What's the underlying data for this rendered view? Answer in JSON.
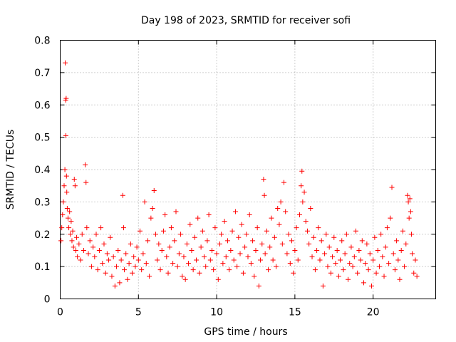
{
  "chart_data": {
    "type": "scatter",
    "title": "Day 198 of 2023, SRMTID for receiver sofi",
    "xlabel": "GPS time / hours",
    "ylabel": "SRMTID / TECUs",
    "xlim": [
      0,
      24
    ],
    "ylim": [
      0,
      0.8
    ],
    "xticks": [
      0,
      5,
      10,
      15,
      20
    ],
    "xtick_labels": [
      "0",
      "5",
      "10",
      "15",
      "20"
    ],
    "yticks": [
      0,
      0.1,
      0.2,
      0.3,
      0.4,
      0.5,
      0.6,
      0.7,
      0.8
    ],
    "ytick_labels": [
      "0",
      "0.1",
      "0.2",
      "0.3",
      "0.4",
      "0.5",
      "0.6",
      "0.7",
      "0.8"
    ],
    "grid": true,
    "marker": "+",
    "color": "#ff0000",
    "series": [
      {
        "name": "sofi",
        "points": [
          [
            0.05,
            0.18
          ],
          [
            0.1,
            0.22
          ],
          [
            0.15,
            0.26
          ],
          [
            0.2,
            0.3
          ],
          [
            0.25,
            0.35
          ],
          [
            0.3,
            0.4
          ],
          [
            0.32,
            0.73
          ],
          [
            0.35,
            0.615
          ],
          [
            0.38,
            0.62
          ],
          [
            0.36,
            0.505
          ],
          [
            0.4,
            0.38
          ],
          [
            0.42,
            0.33
          ],
          [
            0.45,
            0.28
          ],
          [
            0.5,
            0.25
          ],
          [
            0.55,
            0.22
          ],
          [
            0.6,
            0.27
          ],
          [
            0.65,
            0.2
          ],
          [
            0.7,
            0.24
          ],
          [
            0.75,
            0.18
          ],
          [
            0.8,
            0.21
          ],
          [
            0.85,
            0.16
          ],
          [
            0.9,
            0.37
          ],
          [
            0.95,
            0.35
          ],
          [
            1.0,
            0.15
          ],
          [
            1.05,
            0.19
          ],
          [
            1.1,
            0.13
          ],
          [
            1.2,
            0.17
          ],
          [
            1.3,
            0.12
          ],
          [
            1.4,
            0.2
          ],
          [
            1.5,
            0.15
          ],
          [
            1.6,
            0.415
          ],
          [
            1.65,
            0.36
          ],
          [
            1.7,
            0.22
          ],
          [
            1.8,
            0.14
          ],
          [
            1.9,
            0.18
          ],
          [
            2.0,
            0.1
          ],
          [
            2.1,
            0.16
          ],
          [
            2.2,
            0.13
          ],
          [
            2.3,
            0.2
          ],
          [
            2.4,
            0.09
          ],
          [
            2.5,
            0.15
          ],
          [
            2.6,
            0.22
          ],
          [
            2.7,
            0.11
          ],
          [
            2.8,
            0.17
          ],
          [
            2.9,
            0.08
          ],
          [
            3.0,
            0.14
          ],
          [
            3.1,
            0.12
          ],
          [
            3.2,
            0.19
          ],
          [
            3.3,
            0.07
          ],
          [
            3.4,
            0.13
          ],
          [
            3.5,
            0.04
          ],
          [
            3.6,
            0.1
          ],
          [
            3.7,
            0.15
          ],
          [
            3.8,
            0.05
          ],
          [
            3.9,
            0.12
          ],
          [
            4.0,
            0.32
          ],
          [
            4.05,
            0.22
          ],
          [
            4.1,
            0.09
          ],
          [
            4.2,
            0.14
          ],
          [
            4.3,
            0.06
          ],
          [
            4.4,
            0.11
          ],
          [
            4.5,
            0.17
          ],
          [
            4.6,
            0.08
          ],
          [
            4.7,
            0.13
          ],
          [
            4.8,
            0.1
          ],
          [
            4.9,
            0.16
          ],
          [
            5.0,
            0.12
          ],
          [
            5.1,
            0.21
          ],
          [
            5.2,
            0.09
          ],
          [
            5.3,
            0.14
          ],
          [
            5.4,
            0.3
          ],
          [
            5.5,
            0.11
          ],
          [
            5.6,
            0.18
          ],
          [
            5.7,
            0.07
          ],
          [
            5.8,
            0.25
          ],
          [
            5.9,
            0.28
          ],
          [
            6.0,
            0.335
          ],
          [
            6.1,
            0.2
          ],
          [
            6.2,
            0.12
          ],
          [
            6.3,
            0.17
          ],
          [
            6.4,
            0.09
          ],
          [
            6.5,
            0.15
          ],
          [
            6.6,
            0.21
          ],
          [
            6.7,
            0.26
          ],
          [
            6.8,
            0.13
          ],
          [
            6.9,
            0.08
          ],
          [
            7.0,
            0.16
          ],
          [
            7.1,
            0.22
          ],
          [
            7.2,
            0.11
          ],
          [
            7.3,
            0.18
          ],
          [
            7.4,
            0.27
          ],
          [
            7.5,
            0.1
          ],
          [
            7.6,
            0.14
          ],
          [
            7.7,
            0.2
          ],
          [
            7.8,
            0.07
          ],
          [
            7.9,
            0.13
          ],
          [
            8.0,
            0.06
          ],
          [
            8.1,
            0.17
          ],
          [
            8.2,
            0.11
          ],
          [
            8.3,
            0.23
          ],
          [
            8.4,
            0.15
          ],
          [
            8.5,
            0.09
          ],
          [
            8.6,
            0.19
          ],
          [
            8.7,
            0.12
          ],
          [
            8.8,
            0.25
          ],
          [
            8.9,
            0.08
          ],
          [
            9.0,
            0.16
          ],
          [
            9.1,
            0.21
          ],
          [
            9.2,
            0.13
          ],
          [
            9.3,
            0.1
          ],
          [
            9.4,
            0.18
          ],
          [
            9.5,
            0.26
          ],
          [
            9.6,
            0.12
          ],
          [
            9.7,
            0.15
          ],
          [
            9.8,
            0.09
          ],
          [
            9.9,
            0.22
          ],
          [
            10.0,
            0.14
          ],
          [
            10.1,
            0.06
          ],
          [
            10.2,
            0.17
          ],
          [
            10.3,
            0.2
          ],
          [
            10.4,
            0.11
          ],
          [
            10.5,
            0.24
          ],
          [
            10.6,
            0.13
          ],
          [
            10.7,
            0.18
          ],
          [
            10.8,
            0.09
          ],
          [
            10.9,
            0.15
          ],
          [
            11.0,
            0.21
          ],
          [
            11.1,
            0.12
          ],
          [
            11.2,
            0.27
          ],
          [
            11.3,
            0.1
          ],
          [
            11.4,
            0.19
          ],
          [
            11.5,
            0.14
          ],
          [
            11.6,
            0.23
          ],
          [
            11.7,
            0.08
          ],
          [
            11.8,
            0.16
          ],
          [
            11.9,
            0.2
          ],
          [
            12.0,
            0.13
          ],
          [
            12.1,
            0.26
          ],
          [
            12.2,
            0.11
          ],
          [
            12.3,
            0.18
          ],
          [
            12.4,
            0.07
          ],
          [
            12.5,
            0.15
          ],
          [
            12.6,
            0.22
          ],
          [
            12.7,
            0.04
          ],
          [
            12.8,
            0.12
          ],
          [
            12.9,
            0.17
          ],
          [
            13.0,
            0.37
          ],
          [
            13.05,
            0.32
          ],
          [
            13.1,
            0.14
          ],
          [
            13.2,
            0.21
          ],
          [
            13.3,
            0.09
          ],
          [
            13.4,
            0.16
          ],
          [
            13.5,
            0.25
          ],
          [
            13.6,
            0.12
          ],
          [
            13.7,
            0.19
          ],
          [
            13.8,
            0.1
          ],
          [
            13.9,
            0.28
          ],
          [
            14.0,
            0.23
          ],
          [
            14.1,
            0.3
          ],
          [
            14.2,
            0.17
          ],
          [
            14.3,
            0.36
          ],
          [
            14.4,
            0.27
          ],
          [
            14.5,
            0.14
          ],
          [
            14.6,
            0.2
          ],
          [
            14.7,
            0.11
          ],
          [
            14.8,
            0.18
          ],
          [
            14.9,
            0.08
          ],
          [
            15.0,
            0.15
          ],
          [
            15.1,
            0.22
          ],
          [
            15.2,
            0.12
          ],
          [
            15.3,
            0.26
          ],
          [
            15.4,
            0.35
          ],
          [
            15.45,
            0.395
          ],
          [
            15.5,
            0.3
          ],
          [
            15.6,
            0.33
          ],
          [
            15.7,
            0.24
          ],
          [
            15.8,
            0.21
          ],
          [
            15.9,
            0.17
          ],
          [
            16.0,
            0.28
          ],
          [
            16.1,
            0.13
          ],
          [
            16.2,
            0.19
          ],
          [
            16.3,
            0.09
          ],
          [
            16.4,
            0.15
          ],
          [
            16.5,
            0.22
          ],
          [
            16.6,
            0.12
          ],
          [
            16.7,
            0.18
          ],
          [
            16.8,
            0.04
          ],
          [
            16.9,
            0.14
          ],
          [
            17.0,
            0.2
          ],
          [
            17.1,
            0.1
          ],
          [
            17.2,
            0.16
          ],
          [
            17.3,
            0.08
          ],
          [
            17.4,
            0.13
          ],
          [
            17.5,
            0.19
          ],
          [
            17.6,
            0.11
          ],
          [
            17.7,
            0.15
          ],
          [
            17.8,
            0.07
          ],
          [
            17.9,
            0.12
          ],
          [
            18.0,
            0.18
          ],
          [
            18.1,
            0.09
          ],
          [
            18.2,
            0.14
          ],
          [
            18.3,
            0.2
          ],
          [
            18.4,
            0.06
          ],
          [
            18.5,
            0.11
          ],
          [
            18.6,
            0.16
          ],
          [
            18.7,
            0.1
          ],
          [
            18.8,
            0.13
          ],
          [
            18.9,
            0.21
          ],
          [
            19.0,
            0.08
          ],
          [
            19.1,
            0.15
          ],
          [
            19.2,
            0.12
          ],
          [
            19.3,
            0.18
          ],
          [
            19.4,
            0.05
          ],
          [
            19.5,
            0.11
          ],
          [
            19.6,
            0.17
          ],
          [
            19.7,
            0.09
          ],
          [
            19.8,
            0.14
          ],
          [
            19.9,
            0.04
          ],
          [
            20.0,
            0.12
          ],
          [
            20.1,
            0.19
          ],
          [
            20.2,
            0.08
          ],
          [
            20.3,
            0.15
          ],
          [
            20.4,
            0.1
          ],
          [
            20.5,
            0.2
          ],
          [
            20.6,
            0.13
          ],
          [
            20.7,
            0.07
          ],
          [
            20.8,
            0.16
          ],
          [
            20.9,
            0.22
          ],
          [
            21.0,
            0.11
          ],
          [
            21.1,
            0.25
          ],
          [
            21.2,
            0.345
          ],
          [
            21.3,
            0.14
          ],
          [
            21.4,
            0.09
          ],
          [
            21.5,
            0.18
          ],
          [
            21.6,
            0.12
          ],
          [
            21.7,
            0.06
          ],
          [
            21.8,
            0.15
          ],
          [
            21.9,
            0.21
          ],
          [
            22.0,
            0.1
          ],
          [
            22.1,
            0.17
          ],
          [
            22.2,
            0.32
          ],
          [
            22.25,
            0.3
          ],
          [
            22.3,
            0.25
          ],
          [
            22.35,
            0.31
          ],
          [
            22.4,
            0.27
          ],
          [
            22.45,
            0.2
          ],
          [
            22.5,
            0.14
          ],
          [
            22.6,
            0.08
          ],
          [
            22.7,
            0.12
          ],
          [
            22.8,
            0.07
          ]
        ]
      }
    ]
  }
}
